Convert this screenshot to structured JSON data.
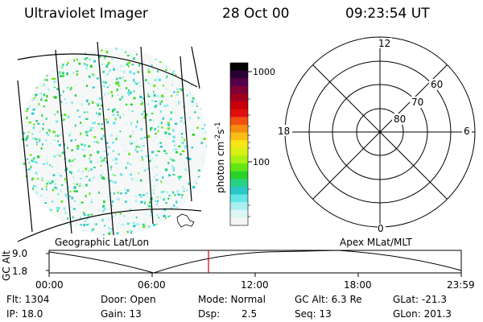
{
  "header": {
    "title": "Ultraviolet Imager",
    "date": "28 Oct 00",
    "time": "09:23:54 UT"
  },
  "geo_panel": {
    "label": "Geographic Lat/Lon"
  },
  "apex_panel": {
    "label": "Apex MLat/MLT",
    "mlt_labels": {
      "top": "12",
      "bottom": "0",
      "left": "18",
      "right": "6"
    },
    "lat_labels": [
      "60",
      "70",
      "80"
    ]
  },
  "colorbar": {
    "unit_label": "photon cm",
    "unit_exp1": "-2",
    "unit_mid": "s",
    "unit_exp2": "-1",
    "ticks": [
      "1000",
      "100"
    ],
    "colors": [
      "#000000",
      "#2a0033",
      "#55004a",
      "#7d0036",
      "#a10020",
      "#c8000a",
      "#e01010",
      "#f05010",
      "#f58c10",
      "#f8be14",
      "#f8e614",
      "#d8f014",
      "#a8f014",
      "#64e614",
      "#28d228",
      "#28d282",
      "#28c8c8",
      "#64e6e6",
      "#aaf0f0",
      "#dcf5f5",
      "#f5f5f5"
    ]
  },
  "timeline": {
    "ylabel": "GC Alt",
    "y_ticks": [
      "9.0",
      "1.8"
    ],
    "x_ticks": [
      "00:00",
      "06:00",
      "12:00",
      "18:00",
      "23:59"
    ],
    "marker_color": "#d00000"
  },
  "status": {
    "flt": "Flt: 1304",
    "ip": "IP: 18.0",
    "door": "Door: Open",
    "gain": "Gain: 13",
    "mode": "Mode: Normal",
    "dsp_label": "Dsp:",
    "dsp_value": "2.5",
    "gcalt": "GC Alt: 6.3 Re",
    "seq": "Seq: 13",
    "glat": "GLat: -21.3",
    "glon": "GLon: 201.3"
  }
}
